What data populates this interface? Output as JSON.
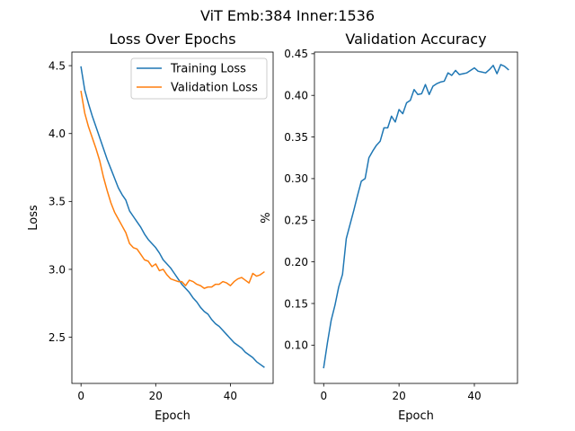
{
  "figure": {
    "suptitle": "ViT Emb:384 Inner:1536"
  },
  "chart_data": [
    {
      "type": "line",
      "title": "Loss Over Epochs",
      "xlabel": "Epoch",
      "ylabel": "Loss",
      "xlim": [
        -2.45,
        51.45
      ],
      "ylim": [
        2.16,
        4.6
      ],
      "xticks": [
        0,
        20,
        40
      ],
      "yticks": [
        2.5,
        3.0,
        3.5,
        4.0,
        4.5
      ],
      "ytick_labels": [
        "2.5",
        "3.0",
        "3.5",
        "4.0",
        "4.5"
      ],
      "grid": false,
      "legend": "top-right",
      "x": [
        0,
        1,
        2,
        3,
        4,
        5,
        6,
        7,
        8,
        9,
        10,
        11,
        12,
        13,
        14,
        15,
        16,
        17,
        18,
        19,
        20,
        21,
        22,
        23,
        24,
        25,
        26,
        27,
        28,
        29,
        30,
        31,
        32,
        33,
        34,
        35,
        36,
        37,
        38,
        39,
        40,
        41,
        42,
        43,
        44,
        45,
        46,
        47,
        48,
        49
      ],
      "series": [
        {
          "name": "Training Loss",
          "color": "#1f77b4",
          "values": [
            4.49,
            4.32,
            4.22,
            4.13,
            4.05,
            3.97,
            3.89,
            3.81,
            3.74,
            3.67,
            3.6,
            3.55,
            3.51,
            3.43,
            3.39,
            3.35,
            3.31,
            3.26,
            3.22,
            3.19,
            3.16,
            3.12,
            3.07,
            3.04,
            3.01,
            2.97,
            2.93,
            2.89,
            2.86,
            2.83,
            2.79,
            2.76,
            2.72,
            2.69,
            2.67,
            2.63,
            2.6,
            2.58,
            2.55,
            2.52,
            2.49,
            2.46,
            2.44,
            2.42,
            2.39,
            2.37,
            2.35,
            2.32,
            2.3,
            2.28
          ]
        },
        {
          "name": "Validation Loss",
          "color": "#ff7f0e",
          "values": [
            4.31,
            4.15,
            4.05,
            3.97,
            3.89,
            3.8,
            3.68,
            3.58,
            3.49,
            3.42,
            3.37,
            3.32,
            3.27,
            3.19,
            3.16,
            3.15,
            3.11,
            3.07,
            3.06,
            3.02,
            3.04,
            2.99,
            3.0,
            2.96,
            2.93,
            2.92,
            2.91,
            2.91,
            2.88,
            2.92,
            2.91,
            2.89,
            2.88,
            2.86,
            2.87,
            2.87,
            2.89,
            2.89,
            2.91,
            2.9,
            2.88,
            2.91,
            2.93,
            2.94,
            2.92,
            2.9,
            2.97,
            2.95,
            2.96,
            2.98
          ]
        }
      ]
    },
    {
      "type": "line",
      "title": "Validation Accuracy",
      "xlabel": "Epoch",
      "ylabel": "%",
      "xlim": [
        -2.45,
        51.45
      ],
      "ylim": [
        0.054,
        0.452
      ],
      "xticks": [
        0,
        20,
        40
      ],
      "yticks": [
        0.1,
        0.15,
        0.2,
        0.25,
        0.3,
        0.35,
        0.4,
        0.45
      ],
      "ytick_labels": [
        "0.10",
        "0.15",
        "0.20",
        "0.25",
        "0.30",
        "0.35",
        "0.40",
        "0.45"
      ],
      "grid": false,
      "x": [
        0,
        1,
        2,
        3,
        4,
        5,
        6,
        7,
        8,
        9,
        10,
        11,
        12,
        13,
        14,
        15,
        16,
        17,
        18,
        19,
        20,
        21,
        22,
        23,
        24,
        25,
        26,
        27,
        28,
        29,
        30,
        31,
        32,
        33,
        34,
        35,
        36,
        37,
        38,
        39,
        40,
        41,
        42,
        43,
        44,
        45,
        46,
        47,
        48,
        49
      ],
      "series": [
        {
          "color": "#1f77b4",
          "values": [
            0.073,
            0.103,
            0.13,
            0.148,
            0.17,
            0.185,
            0.228,
            0.245,
            0.262,
            0.28,
            0.297,
            0.3,
            0.325,
            0.333,
            0.34,
            0.345,
            0.361,
            0.361,
            0.375,
            0.368,
            0.383,
            0.378,
            0.391,
            0.394,
            0.407,
            0.401,
            0.402,
            0.413,
            0.401,
            0.411,
            0.414,
            0.416,
            0.417,
            0.427,
            0.424,
            0.43,
            0.425,
            0.426,
            0.427,
            0.43,
            0.433,
            0.429,
            0.428,
            0.427,
            0.431,
            0.436,
            0.426,
            0.437,
            0.435,
            0.431
          ]
        }
      ]
    }
  ]
}
